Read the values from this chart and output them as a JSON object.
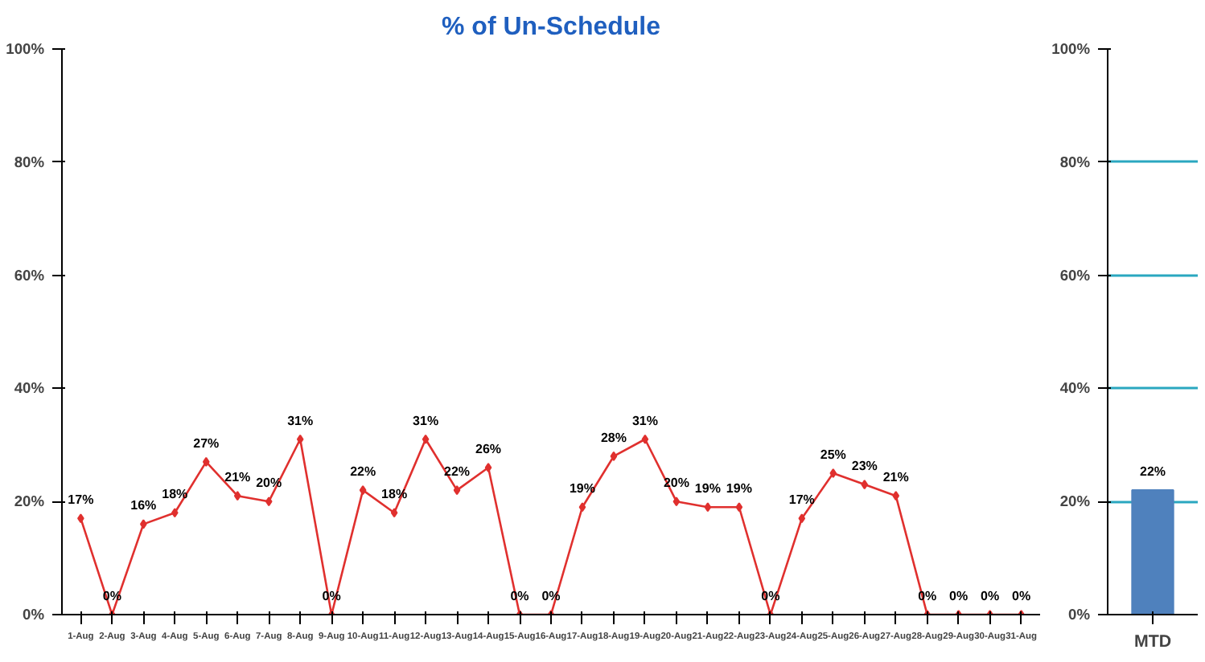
{
  "chart_data": [
    {
      "type": "line",
      "title": "% of Un-Schedule",
      "categories": [
        "1-Aug",
        "2-Aug",
        "3-Aug",
        "4-Aug",
        "5-Aug",
        "6-Aug",
        "7-Aug",
        "8-Aug",
        "9-Aug",
        "10-Aug",
        "11-Aug",
        "12-Aug",
        "13-Aug",
        "14-Aug",
        "15-Aug",
        "16-Aug",
        "17-Aug",
        "18-Aug",
        "19-Aug",
        "20-Aug",
        "21-Aug",
        "22-Aug",
        "23-Aug",
        "24-Aug",
        "25-Aug",
        "26-Aug",
        "27-Aug",
        "28-Aug",
        "29-Aug",
        "30-Aug",
        "31-Aug"
      ],
      "series": [
        {
          "color": "#e0302e",
          "values": [
            17,
            0,
            16,
            18,
            27,
            21,
            20,
            31,
            0,
            22,
            18,
            31,
            22,
            26,
            0,
            0,
            19,
            28,
            31,
            20,
            19,
            19,
            0,
            17,
            25,
            23,
            21,
            0,
            0,
            0,
            0
          ],
          "value_labels": [
            "17%",
            "0%",
            "16%",
            "18%",
            "27%",
            "21%",
            "20%",
            "31%",
            "0%",
            "22%",
            "18%",
            "31%",
            "22%",
            "26%",
            "0%",
            "0%",
            "19%",
            "28%",
            "31%",
            "20%",
            "19%",
            "19%",
            "0%",
            "17%",
            "25%",
            "23%",
            "21%",
            "0%",
            "0%",
            "0%",
            "0%"
          ]
        }
      ],
      "ylim": [
        0,
        100
      ],
      "yticks": [
        {
          "value": 0,
          "label": "0%"
        },
        {
          "value": 20,
          "label": "20%"
        },
        {
          "value": 40,
          "label": "40%"
        },
        {
          "value": 60,
          "label": "60%"
        },
        {
          "value": 80,
          "label": "80%"
        },
        {
          "value": 100,
          "label": "100%"
        }
      ],
      "marker": "diamond",
      "line_style": "solid",
      "grid": false
    },
    {
      "type": "bar",
      "categories": [
        "MTD"
      ],
      "values": [
        22
      ],
      "color": "#4f81bd",
      "value_labels": [
        "22%"
      ],
      "ylim": [
        0,
        100
      ],
      "yticks": [
        {
          "value": 0,
          "label": "0%"
        },
        {
          "value": 20,
          "label": "20%"
        },
        {
          "value": 40,
          "label": "40%"
        },
        {
          "value": 60,
          "label": "60%"
        },
        {
          "value": 80,
          "label": "80%"
        },
        {
          "value": 100,
          "label": "100%"
        }
      ],
      "grid": "y"
    }
  ]
}
